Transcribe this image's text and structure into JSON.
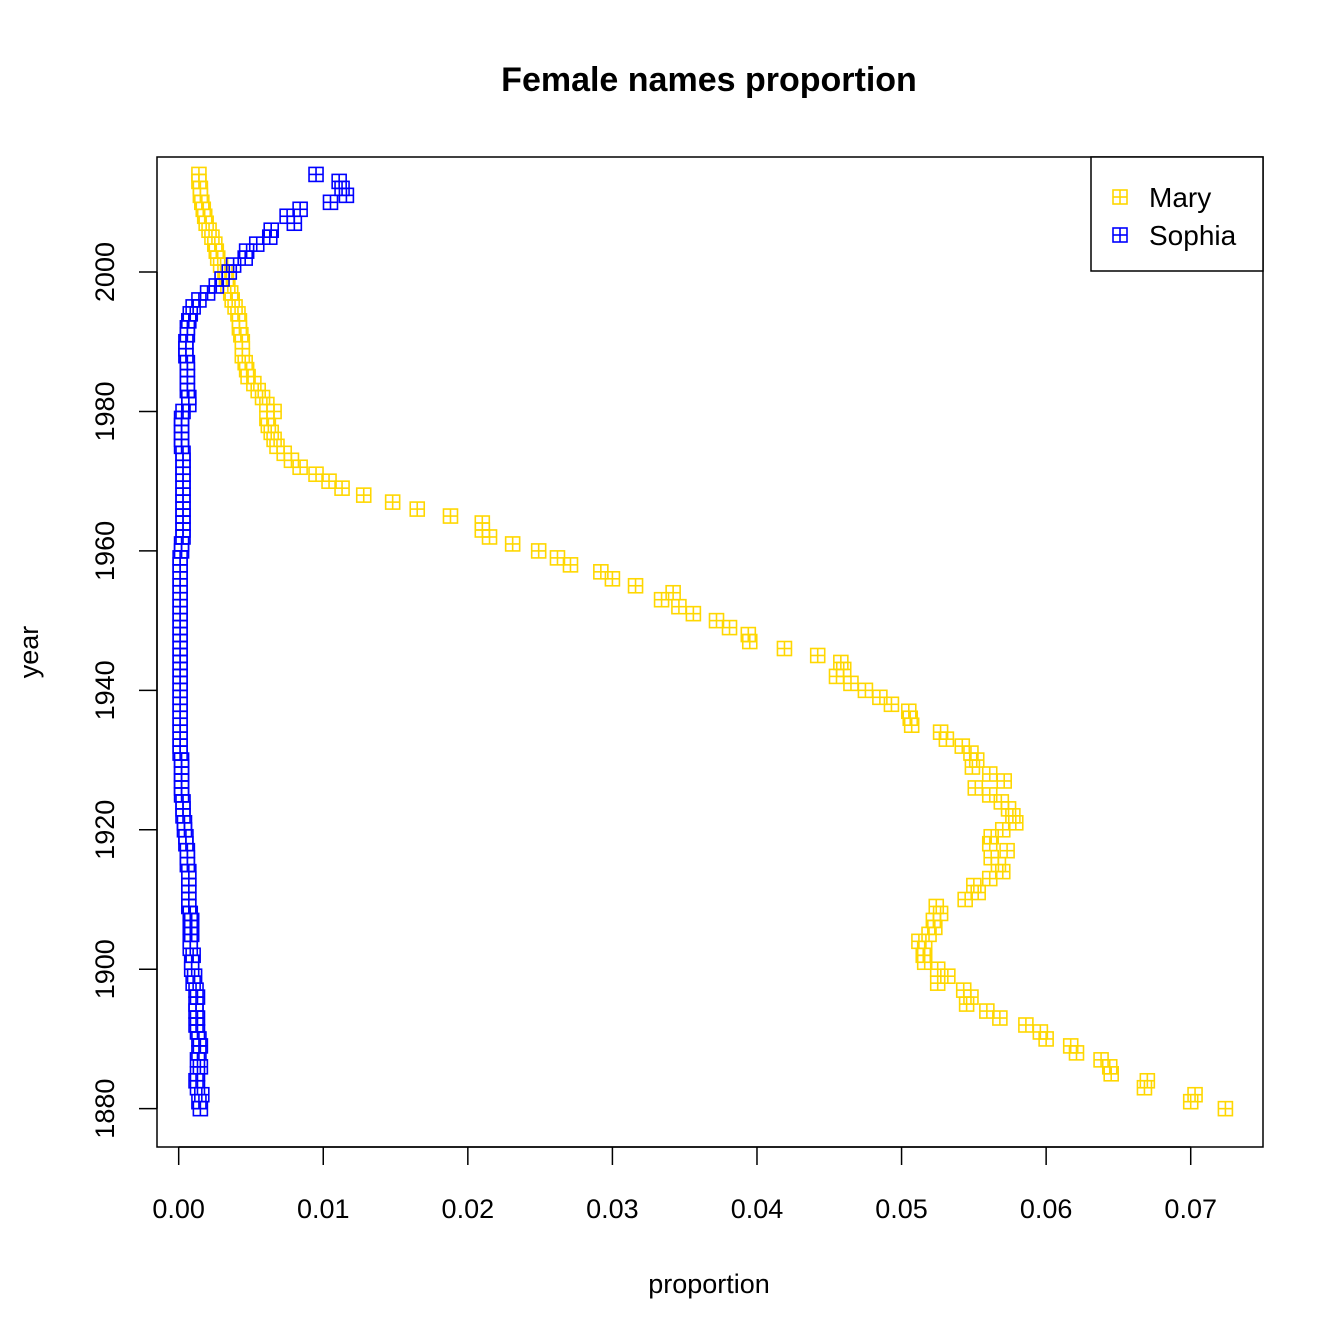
{
  "chart_data": {
    "type": "scatter",
    "title": "Female names proportion",
    "xlabel": "proportion",
    "ylabel": "year",
    "xlim": [
      -0.0015,
      0.075
    ],
    "ylim": [
      1874.5,
      2016.5
    ],
    "xticks": [
      "0.00",
      "0.01",
      "0.02",
      "0.03",
      "0.04",
      "0.05",
      "0.06",
      "0.07"
    ],
    "xtick_values": [
      0.0,
      0.01,
      0.02,
      0.03,
      0.04,
      0.05,
      0.06,
      0.07
    ],
    "yticks": [
      "1880",
      "1900",
      "1920",
      "1940",
      "1960",
      "1980",
      "2000"
    ],
    "ytick_values": [
      1880,
      1900,
      1920,
      1940,
      1960,
      1980,
      2000
    ],
    "legend": {
      "position": "top-right",
      "entries": [
        "Mary",
        "Sophia"
      ]
    },
    "series": [
      {
        "name": "Mary",
        "color": "#FFD700",
        "marker": "boxed-plus",
        "points": [
          [
            0.0724,
            1880
          ],
          [
            0.0703,
            1882
          ],
          [
            0.07,
            1881
          ],
          [
            0.067,
            1884
          ],
          [
            0.0668,
            1883
          ],
          [
            0.0645,
            1885
          ],
          [
            0.0644,
            1886
          ],
          [
            0.0638,
            1887
          ],
          [
            0.0621,
            1888
          ],
          [
            0.0617,
            1889
          ],
          [
            0.06,
            1890
          ],
          [
            0.0596,
            1891
          ],
          [
            0.0586,
            1892
          ],
          [
            0.0568,
            1893
          ],
          [
            0.0559,
            1894
          ],
          [
            0.0545,
            1895
          ],
          [
            0.0548,
            1896
          ],
          [
            0.0543,
            1897
          ],
          [
            0.0525,
            1898
          ],
          [
            0.0532,
            1899
          ],
          [
            0.0525,
            1900
          ],
          [
            0.0516,
            1901
          ],
          [
            0.0515,
            1902
          ],
          [
            0.0516,
            1903
          ],
          [
            0.0512,
            1904
          ],
          [
            0.0519,
            1905
          ],
          [
            0.0523,
            1906
          ],
          [
            0.0522,
            1907
          ],
          [
            0.0527,
            1908
          ],
          [
            0.0524,
            1909
          ],
          [
            0.0544,
            1910
          ],
          [
            0.0553,
            1911
          ],
          [
            0.055,
            1912
          ],
          [
            0.0561,
            1913
          ],
          [
            0.057,
            1914
          ],
          [
            0.0567,
            1915
          ],
          [
            0.0562,
            1916
          ],
          [
            0.0573,
            1917
          ],
          [
            0.0561,
            1918
          ],
          [
            0.0562,
            1919
          ],
          [
            0.057,
            1920
          ],
          [
            0.0579,
            1921
          ],
          [
            0.0577,
            1922
          ],
          [
            0.0574,
            1923
          ],
          [
            0.0569,
            1924
          ],
          [
            0.0561,
            1925
          ],
          [
            0.0551,
            1926
          ],
          [
            0.0571,
            1927
          ],
          [
            0.0561,
            1928
          ],
          [
            0.0549,
            1929
          ],
          [
            0.0552,
            1930
          ],
          [
            0.0548,
            1931
          ],
          [
            0.0542,
            1932
          ],
          [
            0.0531,
            1933
          ],
          [
            0.0527,
            1934
          ],
          [
            0.0507,
            1935
          ],
          [
            0.0506,
            1936
          ],
          [
            0.0505,
            1937
          ],
          [
            0.0493,
            1938
          ],
          [
            0.0485,
            1939
          ],
          [
            0.0475,
            1940
          ],
          [
            0.0465,
            1941
          ],
          [
            0.0455,
            1942
          ],
          [
            0.046,
            1943
          ],
          [
            0.0458,
            1944
          ],
          [
            0.0442,
            1945
          ],
          [
            0.0419,
            1946
          ],
          [
            0.0395,
            1947
          ],
          [
            0.0394,
            1948
          ],
          [
            0.0381,
            1949
          ],
          [
            0.0372,
            1950
          ],
          [
            0.0356,
            1951
          ],
          [
            0.0346,
            1952
          ],
          [
            0.0334,
            1953
          ],
          [
            0.0342,
            1954
          ],
          [
            0.0316,
            1955
          ],
          [
            0.03,
            1956
          ],
          [
            0.0292,
            1957
          ],
          [
            0.0271,
            1958
          ],
          [
            0.0262,
            1959
          ],
          [
            0.0249,
            1960
          ],
          [
            0.0231,
            1961
          ],
          [
            0.0215,
            1962
          ],
          [
            0.021,
            1963
          ],
          [
            0.021,
            1964
          ],
          [
            0.0188,
            1965
          ],
          [
            0.0165,
            1966
          ],
          [
            0.0148,
            1967
          ],
          [
            0.0128,
            1968
          ],
          [
            0.0113,
            1969
          ],
          [
            0.0104,
            1970
          ],
          [
            0.0095,
            1971
          ],
          [
            0.0084,
            1972
          ],
          [
            0.0078,
            1973
          ],
          [
            0.0073,
            1974
          ],
          [
            0.0068,
            1975
          ],
          [
            0.0066,
            1976
          ],
          [
            0.0064,
            1977
          ],
          [
            0.0062,
            1978
          ],
          [
            0.0061,
            1979
          ],
          [
            0.0066,
            1980
          ],
          [
            0.0061,
            1981
          ],
          [
            0.0058,
            1982
          ],
          [
            0.0055,
            1983
          ],
          [
            0.0052,
            1984
          ],
          [
            0.0048,
            1985
          ],
          [
            0.0047,
            1986
          ],
          [
            0.0046,
            1987
          ],
          [
            0.0044,
            1988
          ],
          [
            0.0044,
            1989
          ],
          [
            0.0044,
            1990
          ],
          [
            0.0043,
            1991
          ],
          [
            0.0042,
            1992
          ],
          [
            0.0042,
            1993
          ],
          [
            0.0041,
            1994
          ],
          [
            0.0039,
            1995
          ],
          [
            0.0037,
            1996
          ],
          [
            0.0036,
            1997
          ],
          [
            0.0034,
            1998
          ],
          [
            0.0033,
            1999
          ],
          [
            0.0032,
            2000
          ],
          [
            0.0029,
            2001
          ],
          [
            0.0027,
            2002
          ],
          [
            0.0026,
            2003
          ],
          [
            0.0025,
            2004
          ],
          [
            0.0023,
            2005
          ],
          [
            0.0021,
            2006
          ],
          [
            0.0019,
            2007
          ],
          [
            0.0018,
            2008
          ],
          [
            0.0017,
            2009
          ],
          [
            0.0016,
            2010
          ],
          [
            0.0015,
            2011
          ],
          [
            0.0015,
            2012
          ],
          [
            0.0014,
            2013
          ],
          [
            0.0014,
            2014
          ]
        ]
      },
      {
        "name": "Sophia",
        "color": "#0000FF",
        "marker": "boxed-plus",
        "points": [
          [
            0.0015,
            1880
          ],
          [
            0.0014,
            1881
          ],
          [
            0.0016,
            1882
          ],
          [
            0.0013,
            1883
          ],
          [
            0.0012,
            1884
          ],
          [
            0.0013,
            1885
          ],
          [
            0.0015,
            1886
          ],
          [
            0.0013,
            1887
          ],
          [
            0.0014,
            1888
          ],
          [
            0.0015,
            1889
          ],
          [
            0.0014,
            1890
          ],
          [
            0.0013,
            1891
          ],
          [
            0.0012,
            1892
          ],
          [
            0.0013,
            1893
          ],
          [
            0.0012,
            1894
          ],
          [
            0.0012,
            1895
          ],
          [
            0.0013,
            1896
          ],
          [
            0.0012,
            1897
          ],
          [
            0.001,
            1898
          ],
          [
            0.0011,
            1899
          ],
          [
            0.0009,
            1900
          ],
          [
            0.0009,
            1901
          ],
          [
            0.001,
            1902
          ],
          [
            0.0008,
            1903
          ],
          [
            0.0008,
            1904
          ],
          [
            0.0009,
            1905
          ],
          [
            0.0008,
            1906
          ],
          [
            0.0009,
            1907
          ],
          [
            0.0008,
            1908
          ],
          [
            0.0007,
            1909
          ],
          [
            0.0007,
            1910
          ],
          [
            0.0007,
            1911
          ],
          [
            0.0007,
            1912
          ],
          [
            0.0007,
            1913
          ],
          [
            0.0007,
            1914
          ],
          [
            0.0006,
            1915
          ],
          [
            0.0006,
            1916
          ],
          [
            0.0006,
            1917
          ],
          [
            0.0005,
            1918
          ],
          [
            0.0005,
            1919
          ],
          [
            0.0004,
            1920
          ],
          [
            0.0004,
            1921
          ],
          [
            0.0003,
            1922
          ],
          [
            0.0003,
            1923
          ],
          [
            0.0003,
            1924
          ],
          [
            0.0002,
            1925
          ],
          [
            0.0002,
            1926
          ],
          [
            0.0002,
            1927
          ],
          [
            0.0002,
            1928
          ],
          [
            0.0002,
            1929
          ],
          [
            0.0002,
            1930
          ],
          [
            0.0001,
            1931
          ],
          [
            0.0001,
            1932
          ],
          [
            0.0001,
            1933
          ],
          [
            0.0001,
            1934
          ],
          [
            0.0001,
            1935
          ],
          [
            0.0001,
            1936
          ],
          [
            0.0001,
            1937
          ],
          [
            0.0001,
            1938
          ],
          [
            0.0001,
            1939
          ],
          [
            0.0001,
            1940
          ],
          [
            0.0001,
            1941
          ],
          [
            0.0001,
            1942
          ],
          [
            0.0001,
            1943
          ],
          [
            0.0001,
            1944
          ],
          [
            0.0001,
            1945
          ],
          [
            0.0001,
            1946
          ],
          [
            0.0001,
            1947
          ],
          [
            0.0001,
            1948
          ],
          [
            0.0001,
            1949
          ],
          [
            0.0001,
            1950
          ],
          [
            0.0001,
            1951
          ],
          [
            0.0001,
            1952
          ],
          [
            0.0001,
            1953
          ],
          [
            0.0001,
            1954
          ],
          [
            0.0001,
            1955
          ],
          [
            0.0001,
            1956
          ],
          [
            0.0001,
            1957
          ],
          [
            0.0001,
            1958
          ],
          [
            0.0001,
            1959
          ],
          [
            0.0002,
            1960
          ],
          [
            0.0002,
            1961
          ],
          [
            0.0003,
            1962
          ],
          [
            0.0003,
            1963
          ],
          [
            0.0003,
            1964
          ],
          [
            0.0003,
            1965
          ],
          [
            0.0003,
            1966
          ],
          [
            0.0003,
            1967
          ],
          [
            0.0003,
            1968
          ],
          [
            0.0003,
            1969
          ],
          [
            0.0003,
            1970
          ],
          [
            0.0003,
            1971
          ],
          [
            0.0003,
            1972
          ],
          [
            0.0003,
            1973
          ],
          [
            0.0003,
            1974
          ],
          [
            0.0002,
            1975
          ],
          [
            0.0002,
            1976
          ],
          [
            0.0002,
            1977
          ],
          [
            0.0002,
            1978
          ],
          [
            0.0002,
            1979
          ],
          [
            0.0003,
            1980
          ],
          [
            0.0007,
            1981
          ],
          [
            0.0007,
            1982
          ],
          [
            0.0006,
            1983
          ],
          [
            0.0006,
            1984
          ],
          [
            0.0006,
            1985
          ],
          [
            0.0006,
            1986
          ],
          [
            0.0006,
            1987
          ],
          [
            0.0005,
            1988
          ],
          [
            0.0005,
            1989
          ],
          [
            0.0005,
            1990
          ],
          [
            0.0006,
            1991
          ],
          [
            0.0006,
            1992
          ],
          [
            0.0007,
            1993
          ],
          [
            0.0008,
            1994
          ],
          [
            0.001,
            1995
          ],
          [
            0.0014,
            1996
          ],
          [
            0.002,
            1997
          ],
          [
            0.0026,
            1998
          ],
          [
            0.003,
            1999
          ],
          [
            0.0035,
            2000
          ],
          [
            0.0038,
            2001
          ],
          [
            0.0046,
            2002
          ],
          [
            0.0047,
            2003
          ],
          [
            0.0054,
            2004
          ],
          [
            0.0063,
            2005
          ],
          [
            0.0064,
            2006
          ],
          [
            0.008,
            2007
          ],
          [
            0.0075,
            2008
          ],
          [
            0.0084,
            2009
          ],
          [
            0.0105,
            2010
          ],
          [
            0.0116,
            2011
          ],
          [
            0.0113,
            2012
          ],
          [
            0.0111,
            2013
          ],
          [
            0.0095,
            2014
          ]
        ]
      }
    ]
  }
}
